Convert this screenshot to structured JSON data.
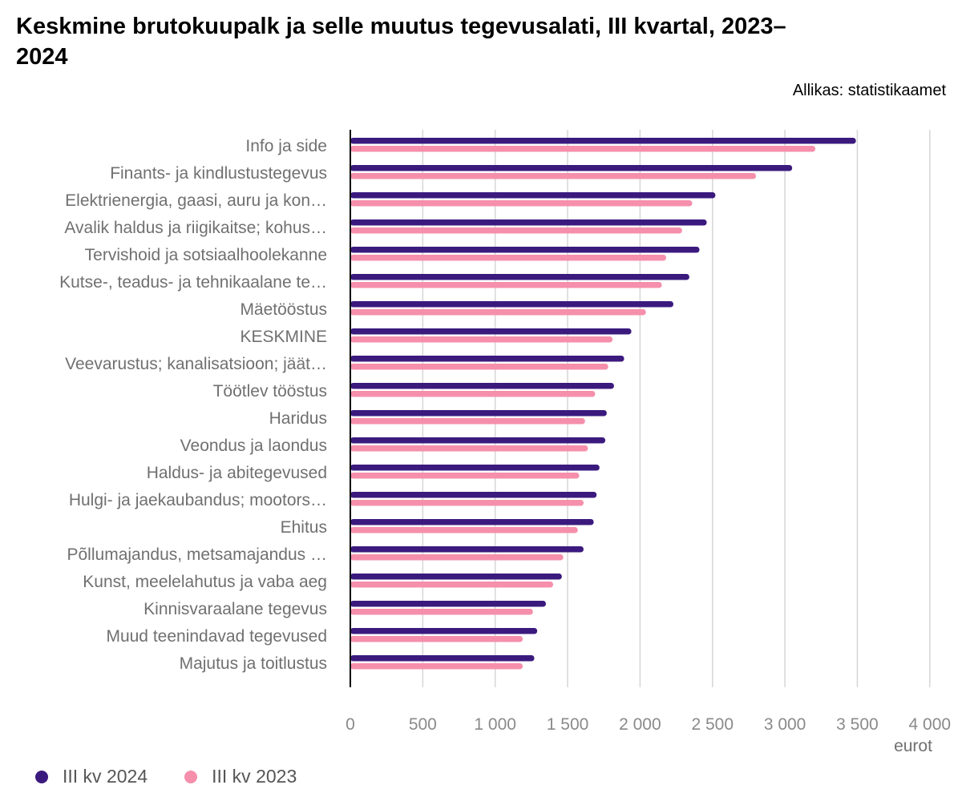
{
  "title": "Keskmine brutokuupalk ja selle muutus tegevusalati, III kvartal, 2023–2024",
  "source": "Allikas: statistikaamet",
  "colors": {
    "s2024": "#3b1a7e",
    "s2023": "#f58fab"
  },
  "chart_data": {
    "type": "bar",
    "orientation": "horizontal",
    "title": "Keskmine brutokuupalk ja selle muutus tegevusalati, III kvartal, 2023–2024",
    "unit": "eurot",
    "xlim": [
      0,
      4000
    ],
    "xticks": [
      0,
      500,
      1000,
      1500,
      2000,
      2500,
      3000,
      3500,
      4000
    ],
    "xtick_labels": [
      "0",
      "500",
      "1 000",
      "1 500",
      "2 000",
      "2 500",
      "3 000",
      "3 500",
      "4 000"
    ],
    "grid": true,
    "legend_position": "bottom-left",
    "categories": [
      "Info ja side",
      "Finants- ja kindlustustegevus",
      "Elektrienergia, gaasi, auru ja kon…",
      "Avalik haldus ja riigikaitse; kohus…",
      "Tervishoid ja sotsiaalhoolekanne",
      "Kutse-, teadus- ja tehnikaalane te…",
      "Mäetööstus",
      "KESKMINE",
      "Veevarustus; kanalisatsioon; jäät…",
      "Töötlev tööstus",
      "Haridus",
      "Veondus ja laondus",
      "Haldus- ja abitegevused",
      "Hulgi- ja jaekaubandus; mootors…",
      "Ehitus",
      "Põllumajandus, metsamajandus …",
      "Kunst, meelelahutus ja vaba aeg",
      "Kinnisvaraalane tegevus",
      "Muud teenindavad tegevused",
      "Majutus ja toitlustus"
    ],
    "series": [
      {
        "name": "III kv 2024",
        "values": [
          3490,
          3050,
          2520,
          2460,
          2410,
          2340,
          2230,
          1940,
          1890,
          1820,
          1770,
          1760,
          1720,
          1700,
          1680,
          1610,
          1460,
          1350,
          1290,
          1270
        ]
      },
      {
        "name": "III kv 2023",
        "values": [
          3210,
          2800,
          2360,
          2290,
          2180,
          2150,
          2040,
          1810,
          1780,
          1690,
          1620,
          1640,
          1580,
          1610,
          1570,
          1470,
          1400,
          1260,
          1190,
          1190
        ]
      }
    ]
  }
}
